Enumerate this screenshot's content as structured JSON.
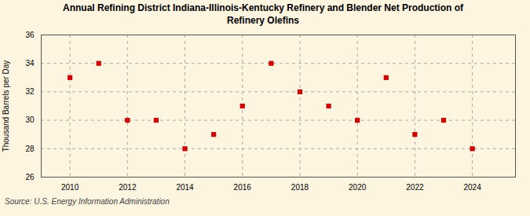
{
  "chart_data": {
    "type": "scatter",
    "title": "Annual Refining District Indiana-Illinois-Kentucky Refinery and Blender Net Production of\nRefinery Olefins",
    "ylabel": "Thousand Barrels per Day",
    "caption": "Source: U.S. Energy Information Administration",
    "x": [
      2010,
      2011,
      2012,
      2013,
      2014,
      2015,
      2016,
      2017,
      2018,
      2019,
      2020,
      2021,
      2022,
      2023,
      2024
    ],
    "values": [
      33,
      34,
      30,
      30,
      28,
      29,
      31,
      34,
      32,
      31,
      30,
      33,
      29,
      30,
      28
    ],
    "color": "#cc0000",
    "marker": "square",
    "xlim": [
      2009.0,
      2025.5
    ],
    "xticks": [
      2010,
      2012,
      2014,
      2016,
      2018,
      2020,
      2022,
      2024
    ],
    "ylim": [
      26,
      36
    ],
    "yticks": [
      26,
      28,
      30,
      32,
      34,
      36
    ],
    "grid": true
  }
}
